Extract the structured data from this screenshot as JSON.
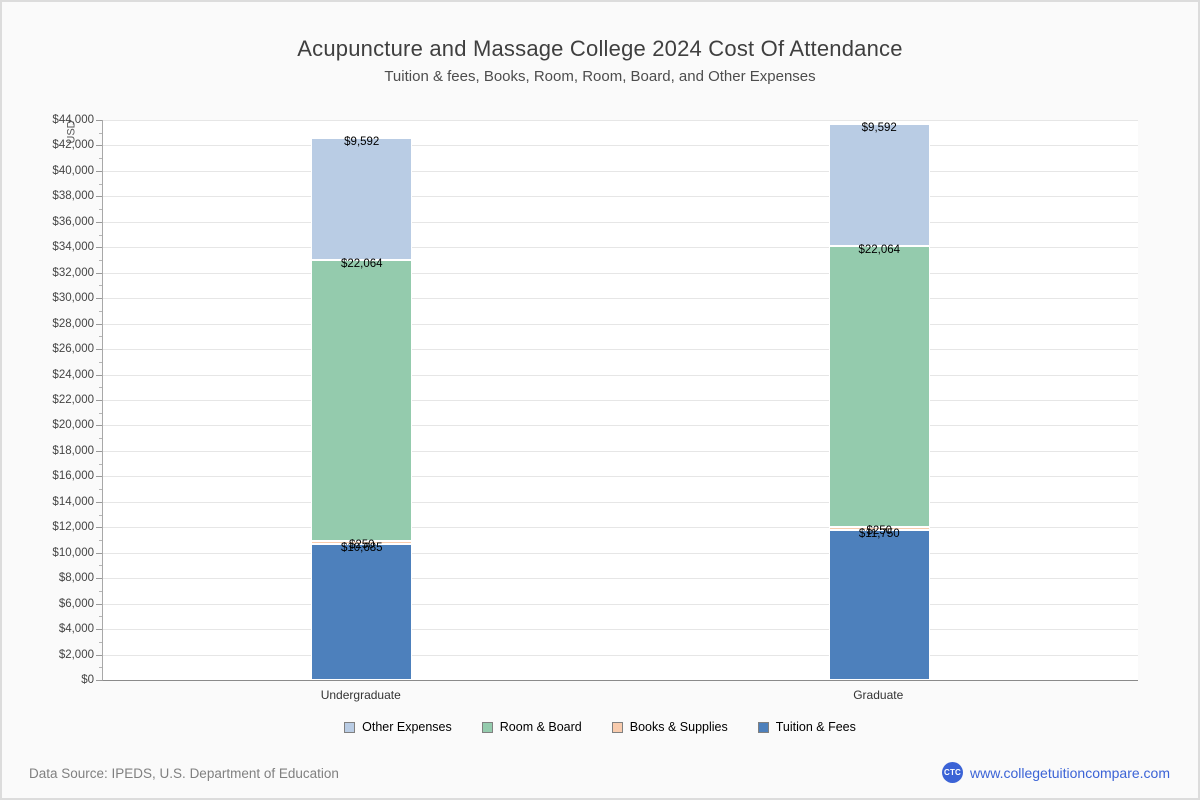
{
  "chart_data": {
    "type": "bar",
    "stacked": true,
    "title": "Acupuncture and Massage College 2024 Cost Of Attendance",
    "subtitle": "Tuition & fees, Books, Room, Room, Board, and Other Expenses",
    "ylabel": "USD",
    "xlabel": "",
    "ylim": [
      0,
      44000
    ],
    "ytick_step": 2000,
    "ytick_minor_step": 1000,
    "grid": true,
    "legend_position": "bottom",
    "categories": [
      "Undergraduate",
      "Graduate"
    ],
    "series": [
      {
        "name": "Tuition & Fees",
        "color": "#4d80bc",
        "values": [
          10685,
          11750
        ],
        "labels": [
          "$10,685",
          "$11,750"
        ]
      },
      {
        "name": "Books & Supplies",
        "color": "#f8cbad",
        "values": [
          250,
          250
        ],
        "labels": [
          "$250",
          "$250"
        ]
      },
      {
        "name": "Room & Board",
        "color": "#94cbad",
        "values": [
          22064,
          22064
        ],
        "labels": [
          "$22,064",
          "$22,064"
        ]
      },
      {
        "name": "Other Expenses",
        "color": "#b9cce4",
        "values": [
          9592,
          9592
        ],
        "labels": [
          "$9,592",
          "$9,592"
        ]
      }
    ],
    "legend_order": [
      "Other Expenses",
      "Room & Board",
      "Books & Supplies",
      "Tuition & Fees"
    ]
  },
  "footer": {
    "source": "Data Source: IPEDS, U.S. Department of Education",
    "logo": "CTC",
    "website": "www.collegetuitioncompare.com",
    "link_color": "#3b63d6",
    "logo_color": "#3b63d6"
  }
}
